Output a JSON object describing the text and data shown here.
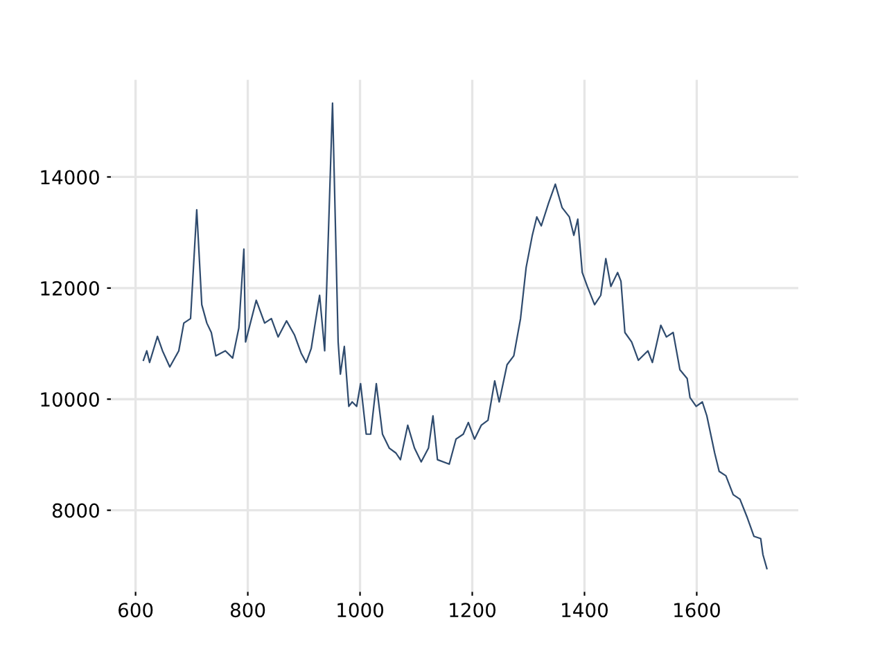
{
  "chart_data": {
    "type": "line",
    "x": [
      614,
      620,
      625,
      639,
      648,
      661,
      677,
      686,
      698,
      709,
      718,
      727,
      735,
      743,
      760,
      773,
      784,
      793,
      796,
      815,
      830,
      842,
      854,
      869,
      883,
      895,
      904,
      913,
      924,
      928,
      937,
      951,
      961,
      965,
      972,
      980,
      986,
      994,
      1001,
      1011,
      1019,
      1029,
      1040,
      1052,
      1064,
      1072,
      1085,
      1097,
      1109,
      1122,
      1130,
      1138,
      1159,
      1171,
      1184,
      1193,
      1204,
      1216,
      1228,
      1240,
      1248,
      1262,
      1274,
      1286,
      1296,
      1307,
      1315,
      1323,
      1336,
      1348,
      1360,
      1373,
      1381,
      1388,
      1396,
      1405,
      1418,
      1429,
      1438,
      1447,
      1459,
      1465,
      1472,
      1484,
      1496,
      1513,
      1521,
      1536,
      1546,
      1558,
      1570,
      1583,
      1588,
      1599,
      1610,
      1618,
      1632,
      1640,
      1652,
      1665,
      1677,
      1690,
      1702,
      1714,
      1718,
      1725
    ],
    "series": [
      {
        "color": "#2f4b6e",
        "values": [
          10700,
          10870,
          10660,
          11130,
          10870,
          10580,
          10870,
          11370,
          11450,
          13410,
          11700,
          11370,
          11200,
          10780,
          10870,
          10740,
          11280,
          12700,
          11030,
          11780,
          11370,
          11450,
          11120,
          11410,
          11160,
          10830,
          10660,
          10910,
          11620,
          11870,
          10870,
          15330,
          11030,
          10450,
          10950,
          9870,
          9950,
          9870,
          10280,
          9370,
          9370,
          10280,
          9370,
          9120,
          9030,
          8910,
          9530,
          9120,
          8870,
          9120,
          9700,
          8910,
          8830,
          9280,
          9370,
          9580,
          9280,
          9530,
          9620,
          10330,
          9950,
          10620,
          10780,
          11450,
          12370,
          12950,
          13280,
          13120,
          13530,
          13870,
          13450,
          13280,
          12950,
          13240,
          12280,
          12030,
          11700,
          11870,
          12530,
          12030,
          12280,
          12120,
          11200,
          11030,
          10700,
          10870,
          10660,
          11330,
          11120,
          11200,
          10530,
          10370,
          10030,
          9870,
          9950,
          9700,
          9030,
          8700,
          8620,
          8280,
          8200,
          7870,
          7530,
          7490,
          7200,
          6950
        ]
      }
    ],
    "xlim": [
      556,
      1781
    ],
    "ylim": [
      6531,
      15749
    ],
    "xticks": [
      600,
      800,
      1000,
      1200,
      1400,
      1600
    ],
    "yticks": [
      8000,
      10000,
      12000,
      14000
    ],
    "grid": true,
    "legend": false,
    "marker": "none",
    "line_style": "solid"
  }
}
